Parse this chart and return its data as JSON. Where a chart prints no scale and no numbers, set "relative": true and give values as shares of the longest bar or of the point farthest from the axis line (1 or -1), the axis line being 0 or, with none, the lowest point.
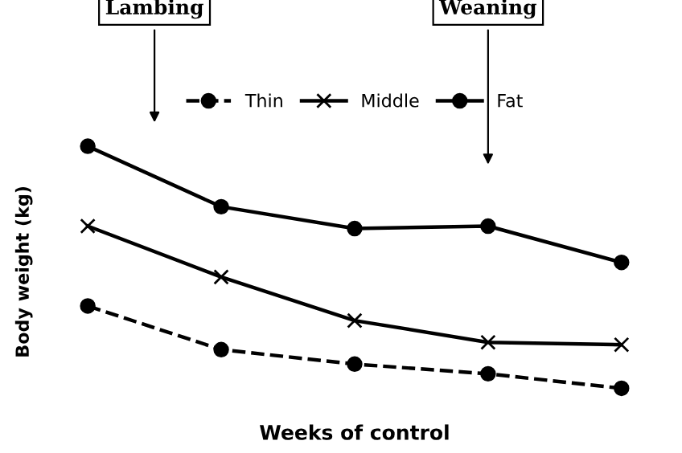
{
  "chart_data": {
    "type": "line",
    "relative": true,
    "xlabel": "Weeks of control",
    "ylabel": "Body weight (kg)",
    "categories": [
      null,
      null,
      null,
      null,
      null
    ],
    "series": [
      {
        "name": "Thin",
        "color": "#000000",
        "marker": "circle",
        "line_style": "dashed",
        "values": [
          0.34,
          0.16,
          0.1,
          0.06,
          0
        ]
      },
      {
        "name": "Middle",
        "color": "#000000",
        "marker": "cross",
        "line_style": "solid",
        "values": [
          0.67,
          0.46,
          0.28,
          0.19,
          0.18
        ]
      },
      {
        "name": "Fat",
        "color": "#000000",
        "marker": "circle",
        "line_style": "solid",
        "values": [
          1,
          0.75,
          0.66,
          0.67,
          0.52
        ]
      }
    ],
    "annotations": [
      "Lambing",
      "Weaning"
    ],
    "legend": "top"
  }
}
